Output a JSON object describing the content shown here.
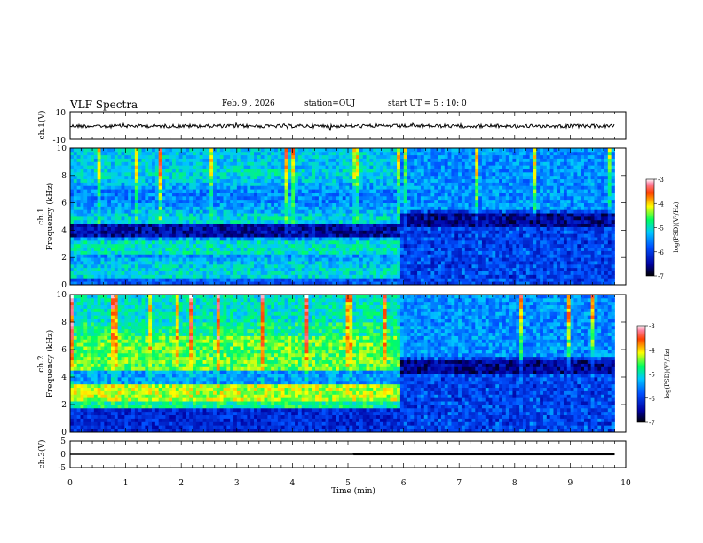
{
  "header": {
    "title": "VLF Spectra",
    "date": "Feb. 9 , 2026",
    "station": "station=OUJ",
    "start_ut": "start  UT =   5 : 10: 0"
  },
  "chart_data": [
    {
      "type": "line",
      "title": "",
      "ylabel": "ch.1(V)",
      "ylim": [
        -10,
        10
      ],
      "yticks": [
        "10",
        "-10"
      ],
      "description_values": {
        "mean": 0,
        "amplitude_approx": 1
      }
    },
    {
      "type": "heatmap",
      "ylabel_top": "ch.1",
      "ylabel": "Frequency (kHz)",
      "ylim": [
        0,
        10
      ],
      "yticks": [
        "10",
        "8",
        "6",
        "4",
        "2",
        "0"
      ],
      "colorbar": {
        "label": "log(PSD)(V²/Hz)",
        "range": [
          -7,
          -3
        ],
        "ticks": [
          "-3",
          "-4",
          "-5",
          "-6",
          "-7"
        ]
      },
      "regime_change_min": 5.9
    },
    {
      "type": "heatmap",
      "ylabel_top": "ch.2",
      "ylabel": "Frequency (kHz)",
      "ylim": [
        0,
        10
      ],
      "yticks": [
        "10",
        "8",
        "6",
        "4",
        "2",
        "0"
      ],
      "colorbar": {
        "label": "log(PSD)(V²/Hz)",
        "range": [
          -7,
          -3
        ],
        "ticks": [
          "-3",
          "-4",
          "-5",
          "-6",
          "-7"
        ]
      },
      "regime_change_min": 5.9
    },
    {
      "type": "line",
      "ylabel": "ch.3(V)",
      "ylim": [
        -5,
        5
      ],
      "yticks": [
        "5",
        "0",
        "-5"
      ],
      "series": [
        {
          "name": "ch.3",
          "x": [
            0,
            5.1,
            5.1,
            9.8
          ],
          "y": [
            0,
            0,
            0.15,
            0.15
          ]
        }
      ]
    }
  ],
  "xaxis": {
    "xlabel": "Time (min)",
    "xlim": [
      0,
      10
    ],
    "ticks": [
      "0",
      "1",
      "2",
      "3",
      "4",
      "5",
      "6",
      "7",
      "8",
      "9",
      "10"
    ]
  }
}
